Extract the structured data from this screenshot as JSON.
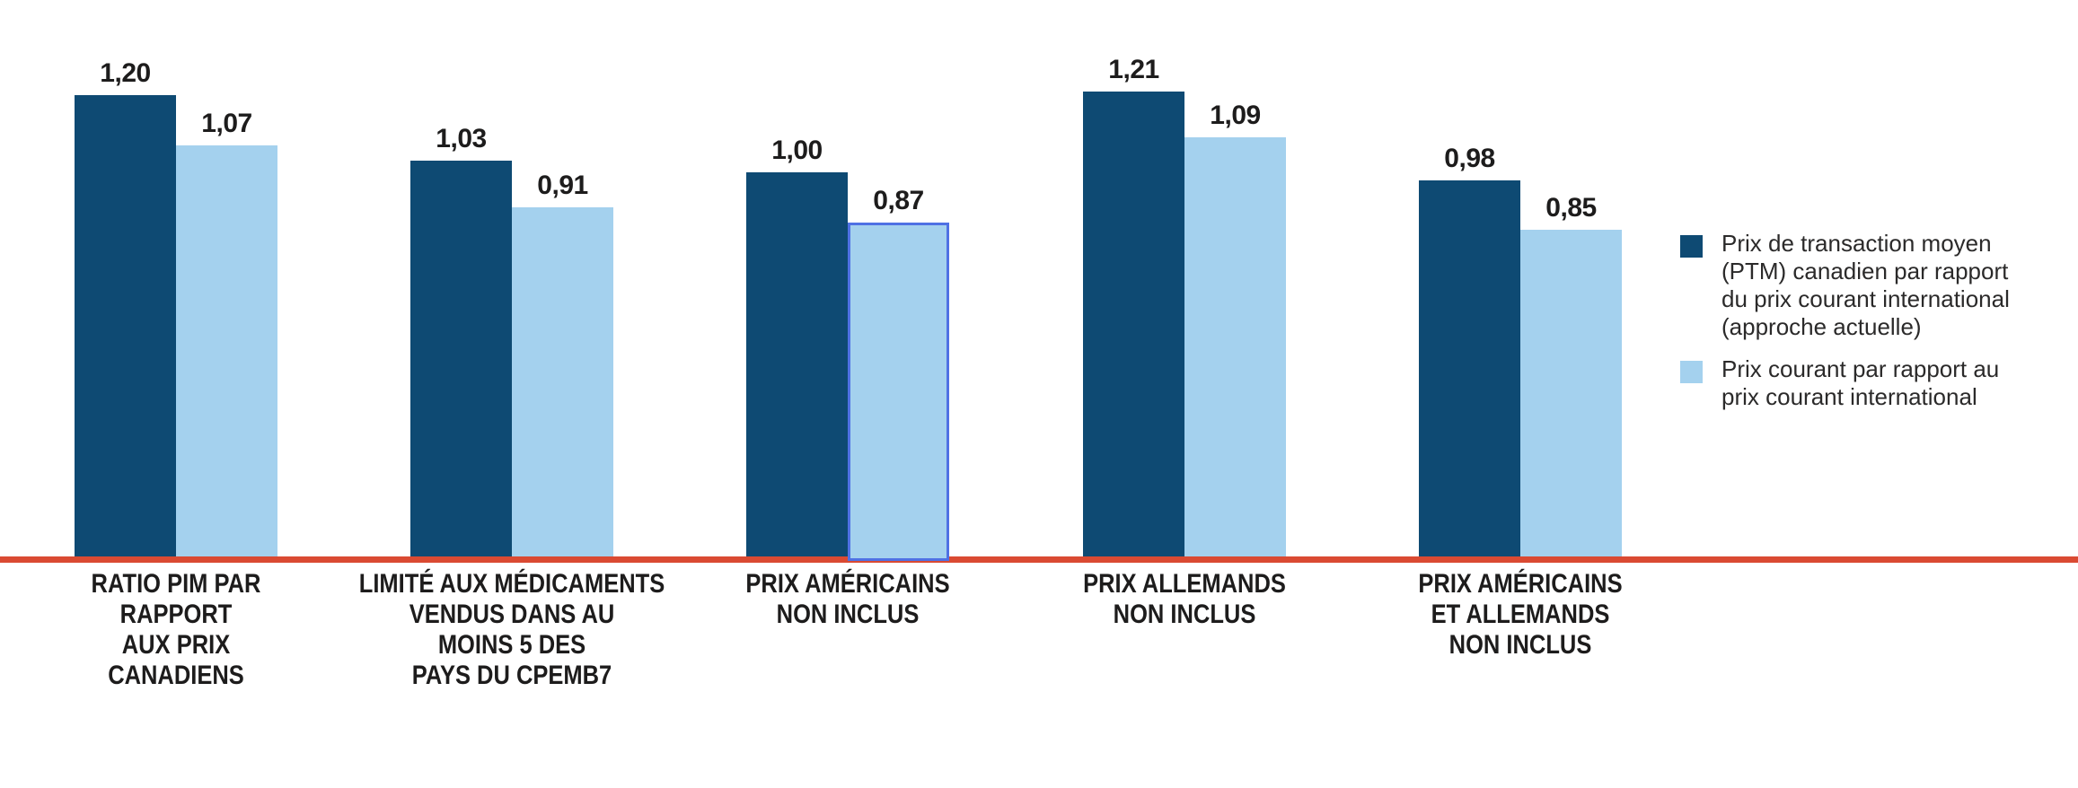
{
  "chart_data": {
    "type": "bar",
    "title": "",
    "xlabel": "",
    "ylabel": "",
    "ylim": [
      0,
      1.45
    ],
    "grid": false,
    "legend_position": "right",
    "decimal_style": "comma",
    "categories": [
      "RATIO PIM PAR\nRAPPORT\nAUX PRIX\nCANADIENS",
      "LIMITÉ AUX MÉDICAMENTS\nVENDUS DANS AU\nMOINS 5 DES\nPAYS DU CPEMB7",
      "PRIX AMÉRICAINS\nNON INCLUS",
      "PRIX ALLEMANDS\nNON INCLUS",
      "PRIX AMÉRICAINS\nET ALLEMANDS\nNON INCLUS"
    ],
    "series": [
      {
        "name": "Prix de transaction moyen (PTM) canadien par rapport du prix courant international (approche actuelle)",
        "color": "#0e4a73",
        "values": [
          1.2,
          1.03,
          1.0,
          1.21,
          0.98
        ],
        "value_labels": [
          "1,20",
          "1,03",
          "1,00",
          "1,21",
          "0,98"
        ]
      },
      {
        "name": "Prix courant par rapport au prix courant international",
        "color": "#a4d1ee",
        "values": [
          1.07,
          0.91,
          0.87,
          1.09,
          0.85
        ],
        "value_labels": [
          "1,07",
          "0,91",
          "0,87",
          "1,09",
          "0,85"
        ]
      }
    ],
    "highlighted_bar": {
      "series_index": 1,
      "category_index": 2,
      "category": "PRIX AMÉRICAINS NON INCLUS",
      "value_label": "0,87",
      "outline_color": "#4f71e4"
    },
    "axis_line_color": "#da4a32",
    "legend": [
      {
        "label": "Prix de transaction moyen\n(PTM) canadien par rapport\ndu prix courant international\n(approche actuelle)",
        "color": "#0e4a73"
      },
      {
        "label": "Prix courant par rapport au\nprix courant international",
        "color": "#a4d1ee"
      }
    ]
  }
}
